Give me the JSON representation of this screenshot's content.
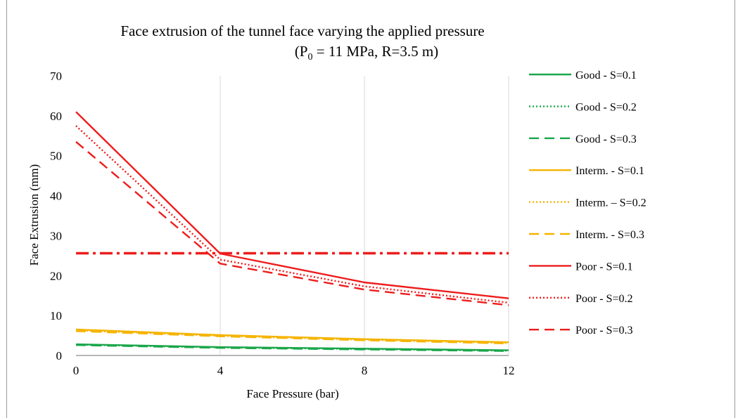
{
  "chart_data": {
    "type": "line",
    "title": "Face extrusion of the tunnel face varying the applied pressure",
    "subtitle": {
      "pre": "(P",
      "sub": "0",
      "post": " = 11 MPa, R=3.5 m)"
    },
    "xlabel": "Face Pressure (bar)",
    "ylabel": "Face Extrusion (mm)",
    "x": [
      0,
      4,
      8,
      12
    ],
    "xlim": [
      0,
      12
    ],
    "ylim": [
      0,
      70
    ],
    "xticks": [
      0,
      4,
      8,
      12
    ],
    "yticks": [
      0,
      10,
      20,
      30,
      40,
      50,
      60,
      70
    ],
    "grid": "vertical",
    "legend_position": "right",
    "series": [
      {
        "name": "Good - S=0.1",
        "color": "#1aa64a",
        "dash": "solid",
        "values": [
          2.8,
          2.1,
          1.7,
          1.3
        ]
      },
      {
        "name": "Good - S=0.2",
        "color": "#1aa64a",
        "dash": "dotted",
        "values": [
          2.7,
          2.0,
          1.6,
          1.2
        ]
      },
      {
        "name": "Good - S=0.3",
        "color": "#1aa64a",
        "dash": "dashed",
        "values": [
          2.6,
          1.9,
          1.5,
          1.1
        ]
      },
      {
        "name": "Interm. - S=0.1",
        "color": "#f5b400",
        "dash": "solid",
        "values": [
          6.5,
          5.1,
          4.1,
          3.3
        ]
      },
      {
        "name": "Interm. – S=0.2",
        "color": "#f5b400",
        "dash": "dotted",
        "values": [
          6.3,
          4.9,
          3.9,
          3.1
        ]
      },
      {
        "name": "Interm. - S=0.3",
        "color": "#f5b400",
        "dash": "dashed",
        "values": [
          6.1,
          4.8,
          3.8,
          3.0
        ]
      },
      {
        "name": "Poor - S=0.1",
        "color": "#ee1c1c",
        "dash": "solid",
        "values": [
          61,
          25.5,
          18.3,
          14.3
        ]
      },
      {
        "name": "Poor - S=0.2",
        "color": "#ee1c1c",
        "dash": "dotted",
        "values": [
          57.5,
          24,
          17.3,
          13.2
        ]
      },
      {
        "name": "Poor - S=0.3",
        "color": "#ee1c1c",
        "dash": "dashed",
        "values": [
          53.5,
          23,
          16.5,
          12.6
        ]
      }
    ],
    "reference_line": {
      "y": 25.6,
      "color": "#ee1c1c",
      "dash": "dashdot"
    }
  }
}
